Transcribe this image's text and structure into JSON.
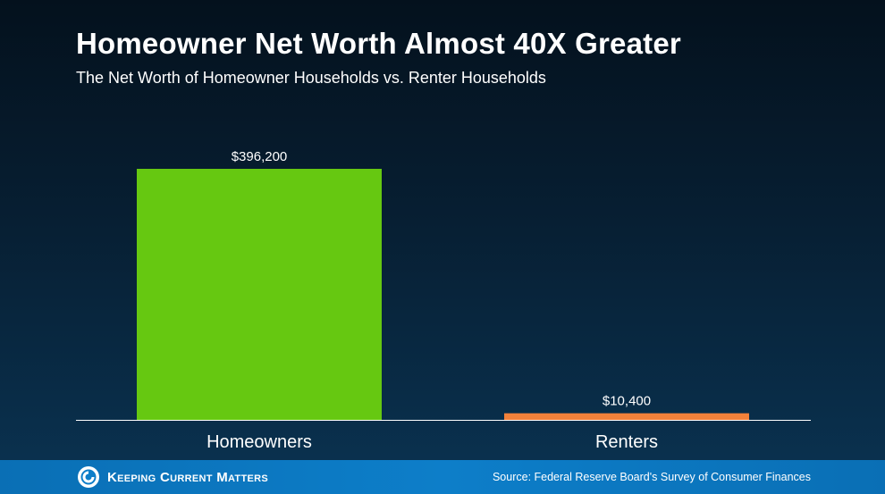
{
  "chart_data": {
    "type": "bar",
    "title": "Homeowner Net Worth Almost 40X Greater",
    "subtitle": "The Net Worth of Homeowner Households vs. Renter Households",
    "categories": [
      "Homeowners",
      "Renters"
    ],
    "values": [
      396200,
      10400
    ],
    "value_labels": [
      "$396,200",
      "$10,400"
    ],
    "colors": [
      "#66c811",
      "#f2813a"
    ],
    "ylim": [
      0,
      396200
    ],
    "xlabel": "",
    "ylabel": "",
    "grid": false,
    "legend": "none"
  },
  "footer": {
    "brand": "Keeping Current Matters",
    "source": "Source: Federal Reserve Board's Survey of Consumer Finances"
  },
  "icons": {
    "brand_logo": "kcm-swirl-logo-icon"
  },
  "colors": {
    "axis": "#ffffff",
    "footer_bar": "#0d7ec9"
  }
}
